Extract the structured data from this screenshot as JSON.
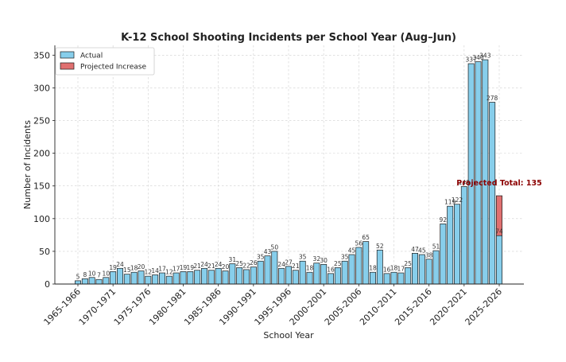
{
  "chart_data": {
    "type": "bar",
    "title": "K-12 School Shooting Incidents per School Year (Aug–Jun)",
    "xlabel": "School Year",
    "ylabel": "Number of Incidents",
    "ylim": [
      0,
      365
    ],
    "yticks": [
      0,
      50,
      100,
      150,
      200,
      250,
      300,
      350
    ],
    "grid": true,
    "legend_position": "top-left",
    "colors": {
      "actual": "#87ceeb",
      "projected": "#e07070",
      "bar_edge": "#1a1a1a",
      "projected_text": "#8b0000"
    },
    "categories": [
      "1965-1966",
      "1966-1967",
      "1967-1968",
      "1968-1969",
      "1969-1970",
      "1970-1971",
      "1971-1972",
      "1972-1973",
      "1973-1974",
      "1974-1975",
      "1975-1976",
      "1976-1977",
      "1977-1978",
      "1978-1979",
      "1979-1980",
      "1980-1981",
      "1981-1982",
      "1982-1983",
      "1983-1984",
      "1984-1985",
      "1985-1986",
      "1986-1987",
      "1987-1988",
      "1988-1989",
      "1989-1990",
      "1990-1991",
      "1991-1992",
      "1992-1993",
      "1993-1994",
      "1994-1995",
      "1995-1996",
      "1996-1997",
      "1997-1998",
      "1998-1999",
      "1999-2000",
      "2000-2001",
      "2001-2002",
      "2002-2003",
      "2003-2004",
      "2004-2005",
      "2005-2006",
      "2006-2007",
      "2007-2008",
      "2008-2009",
      "2009-2010",
      "2010-2011",
      "2011-2012",
      "2012-2013",
      "2013-2014",
      "2014-2015",
      "2015-2016",
      "2016-2017",
      "2017-2018",
      "2018-2019",
      "2019-2020",
      "2020-2021",
      "2021-2022",
      "2022-2023",
      "2023-2024",
      "2024-2025",
      "2025-2026"
    ],
    "x_tick_labels": [
      "1965-1966",
      "1970-1971",
      "1975-1976",
      "1980-1981",
      "1985-1986",
      "1990-1991",
      "1995-1996",
      "2000-2001",
      "2005-2006",
      "2010-2011",
      "2015-2016",
      "2020-2021",
      "2025-2026"
    ],
    "series": [
      {
        "name": "Actual",
        "values": [
          5,
          8,
          10,
          7,
          10,
          19,
          24,
          15,
          18,
          20,
          12,
          14,
          17,
          12,
          17,
          19,
          19,
          21,
          24,
          21,
          24,
          20,
          31,
          25,
          22,
          26,
          35,
          43,
          50,
          24,
          27,
          21,
          35,
          18,
          32,
          30,
          16,
          25,
          35,
          45,
          56,
          65,
          18,
          52,
          16,
          18,
          17,
          25,
          47,
          45,
          38,
          51,
          92,
          119,
          122,
          149,
          337,
          340,
          343,
          278,
          74
        ],
        "labels": [
          "5",
          "8",
          "10",
          "7",
          "10",
          "19",
          "24",
          "15",
          "18",
          "20",
          "12",
          "14",
          "17",
          "12",
          "17",
          "19",
          "19",
          "21",
          "24",
          "21",
          "24",
          "20",
          "31",
          "25",
          "22",
          "26",
          "35",
          "43",
          "50",
          "24",
          "27",
          "21",
          "35",
          "18",
          "32",
          "30",
          "16",
          "25",
          "35",
          "45",
          "56",
          "65",
          "18",
          "52",
          "16",
          "18",
          "17",
          "25",
          "47",
          "45",
          "38",
          "51",
          "92",
          "119",
          "122",
          "149",
          "337",
          "340",
          "343",
          "278",
          "74"
        ]
      },
      {
        "name": "Projected Increase",
        "values": [
          0,
          0,
          0,
          0,
          0,
          0,
          0,
          0,
          0,
          0,
          0,
          0,
          0,
          0,
          0,
          0,
          0,
          0,
          0,
          0,
          0,
          0,
          0,
          0,
          0,
          0,
          0,
          0,
          0,
          0,
          0,
          0,
          0,
          0,
          0,
          0,
          0,
          0,
          0,
          0,
          0,
          0,
          0,
          0,
          0,
          0,
          0,
          0,
          0,
          0,
          0,
          0,
          0,
          0,
          0,
          0,
          0,
          0,
          0,
          0,
          61
        ]
      }
    ],
    "annotations": [
      {
        "text": "Projected Total: 135",
        "category": "2025-2026",
        "value": 135
      }
    ]
  }
}
